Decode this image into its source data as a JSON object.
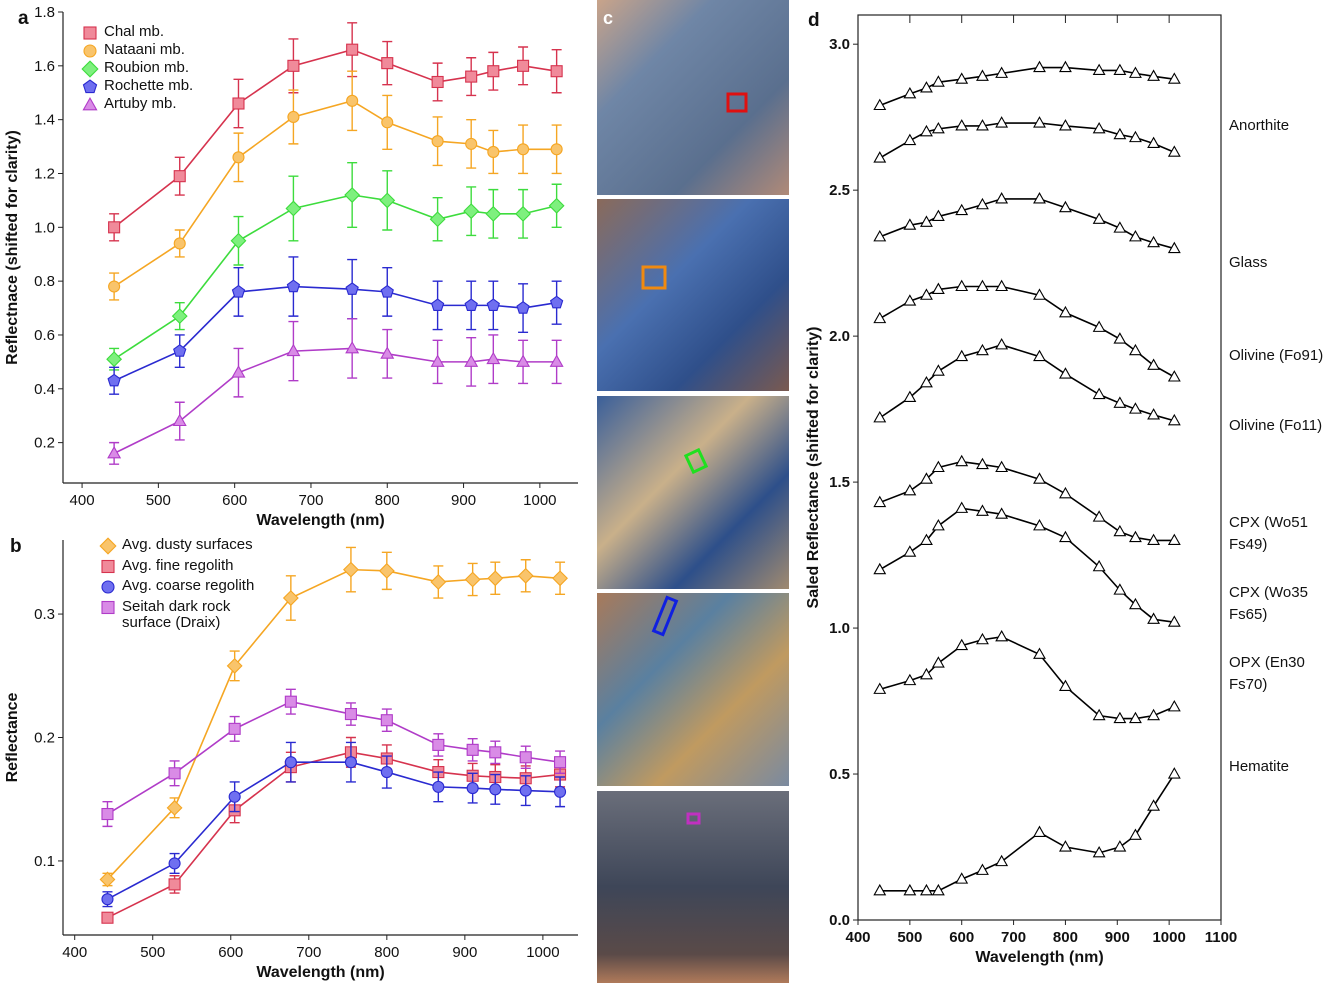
{
  "chart_data": [
    {
      "type": "line",
      "label": "a",
      "x_label": "Wavelength (nm)",
      "y_label": "Reflectnace (shifted for clarity)",
      "x": [
        442,
        528,
        605,
        677,
        754,
        800,
        866,
        910,
        939,
        978,
        1022
      ],
      "xlim": [
        375,
        1050
      ],
      "xticks": [
        400,
        500,
        600,
        700,
        800,
        900,
        1000
      ],
      "ylim": [
        0.05,
        1.8
      ],
      "yticks": [
        0.2,
        0.4,
        0.6,
        0.8,
        {
          "value": 1,
          "label": "1.0"
        },
        1.2,
        1.4,
        1.6,
        1.8
      ],
      "series": [
        {
          "name": "Chal mb.",
          "color": "#d6334e",
          "marker_fill": "#f08a9a",
          "marker": "square",
          "values": [
            1.0,
            1.19,
            1.46,
            1.6,
            1.66,
            1.61,
            1.54,
            1.56,
            1.58,
            1.6,
            1.58
          ],
          "errors": [
            0.05,
            0.07,
            0.09,
            0.1,
            0.1,
            0.08,
            0.07,
            0.07,
            0.07,
            0.07,
            0.08
          ]
        },
        {
          "name": "Nataani mb.",
          "color": "#f5a623",
          "marker_fill": "#f9c46b",
          "marker": "circle",
          "values": [
            0.78,
            0.94,
            1.26,
            1.41,
            1.47,
            1.39,
            1.32,
            1.31,
            1.28,
            1.29,
            1.29
          ],
          "errors": [
            0.05,
            0.05,
            0.09,
            0.1,
            0.11,
            0.1,
            0.09,
            0.09,
            0.08,
            0.09,
            0.09
          ]
        },
        {
          "name": "Roubion mb.",
          "color": "#3ddc3d",
          "marker_fill": "#7ef07e",
          "marker": "diamond",
          "values": [
            0.51,
            0.67,
            0.95,
            1.07,
            1.12,
            1.1,
            1.03,
            1.06,
            1.05,
            1.05,
            1.08
          ],
          "errors": [
            0.04,
            0.05,
            0.09,
            0.12,
            0.12,
            0.11,
            0.08,
            0.09,
            0.09,
            0.09,
            0.08
          ]
        },
        {
          "name": "Rochette mb.",
          "color": "#2a2ad0",
          "marker_fill": "#6f6ff0",
          "marker": "pentagon",
          "values": [
            0.43,
            0.54,
            0.76,
            0.78,
            0.77,
            0.76,
            0.71,
            0.71,
            0.71,
            0.7,
            0.72
          ],
          "errors": [
            0.05,
            0.06,
            0.09,
            0.11,
            0.11,
            0.09,
            0.09,
            0.09,
            0.09,
            0.09,
            0.08
          ]
        },
        {
          "name": "Artuby mb.",
          "color": "#b03cc8",
          "marker_fill": "#d98be6",
          "marker": "triangle",
          "values": [
            0.16,
            0.28,
            0.46,
            0.54,
            0.55,
            0.53,
            0.5,
            0.5,
            0.51,
            0.5,
            0.5
          ],
          "errors": [
            0.04,
            0.07,
            0.09,
            0.11,
            0.11,
            0.09,
            0.08,
            0.09,
            0.09,
            0.08,
            0.08
          ]
        }
      ]
    },
    {
      "type": "line",
      "label": "b",
      "x_label": "Wavelength (nm)",
      "y_label": "Reflectance",
      "x": [
        442,
        528,
        605,
        677,
        754,
        800,
        866,
        910,
        939,
        978,
        1022
      ],
      "xlim": [
        385,
        1045
      ],
      "xticks": [
        400,
        500,
        600,
        700,
        800,
        900,
        1000
      ],
      "ylim": [
        0.04,
        0.36
      ],
      "yticks": [
        0.1,
        0.2,
        0.3
      ],
      "series": [
        {
          "name": "Avg. dusty surfaces",
          "color": "#f5a623",
          "marker_fill": "#f9c46b",
          "marker": "diamond",
          "values": [
            0.085,
            0.143,
            0.258,
            0.313,
            0.336,
            0.335,
            0.326,
            0.328,
            0.329,
            0.331,
            0.329
          ],
          "errors": [
            0.005,
            0.008,
            0.012,
            0.018,
            0.018,
            0.015,
            0.013,
            0.013,
            0.013,
            0.013,
            0.013
          ]
        },
        {
          "name": "Avg. fine regolith",
          "color": "#d6334e",
          "marker_fill": "#f08a9a",
          "marker": "square",
          "values": [
            0.054,
            0.081,
            0.141,
            0.176,
            0.188,
            0.183,
            0.172,
            0.169,
            0.168,
            0.167,
            0.17
          ],
          "errors": [
            0.004,
            0.007,
            0.01,
            0.012,
            0.012,
            0.011,
            0.01,
            0.01,
            0.01,
            0.01,
            0.01
          ]
        },
        {
          "name": "Avg. coarse regolith",
          "color": "#2a2ad0",
          "marker_fill": "#6f6ff0",
          "marker": "circle",
          "values": [
            0.069,
            0.098,
            0.152,
            0.18,
            0.18,
            0.172,
            0.16,
            0.159,
            0.158,
            0.157,
            0.156
          ],
          "errors": [
            0.006,
            0.008,
            0.012,
            0.016,
            0.016,
            0.013,
            0.012,
            0.012,
            0.012,
            0.012,
            0.012
          ]
        },
        {
          "name": "Seitah dark rock surface (Draix)",
          "color": "#b03cc8",
          "marker_fill": "#d98be6",
          "marker": "square",
          "values": [
            0.138,
            0.171,
            0.207,
            0.229,
            0.219,
            0.214,
            0.194,
            0.19,
            0.188,
            0.184,
            0.18
          ],
          "errors": [
            0.01,
            0.01,
            0.01,
            0.01,
            0.009,
            0.009,
            0.009,
            0.009,
            0.009,
            0.009,
            0.009
          ]
        }
      ]
    },
    {
      "type": "line",
      "label": "d",
      "x_label": "Wavelength (nm)",
      "y_label": "Saled Reflectance (shifted for clarity)",
      "x": [
        442,
        500,
        532,
        555,
        600,
        640,
        677,
        750,
        800,
        865,
        905,
        935,
        970,
        1010
      ],
      "xlim": [
        400,
        1100
      ],
      "xticks": [
        400,
        500,
        600,
        700,
        800,
        900,
        1000,
        1100
      ],
      "ylim": [
        0,
        3.1
      ],
      "yticks": [
        {
          "value": 0,
          "label": "0.0"
        },
        0.5,
        {
          "value": 1,
          "label": "1.0"
        },
        1.5,
        {
          "value": 2,
          "label": "2.0"
        },
        2.5,
        {
          "value": 3,
          "label": "3.0"
        }
      ],
      "series": [
        {
          "color": "#000000",
          "marker_fill": "#ffffff",
          "marker": "triangle",
          "values": [
            2.79,
            2.83,
            2.85,
            2.87,
            2.88,
            2.89,
            2.9,
            2.92,
            2.92,
            2.91,
            2.91,
            2.9,
            2.89,
            2.88
          ]
        },
        {
          "name": "Anorthite",
          "color": "#000000",
          "marker_fill": "#ffffff",
          "marker": "triangle",
          "values": [
            2.61,
            2.67,
            2.7,
            2.71,
            2.72,
            2.72,
            2.73,
            2.73,
            2.72,
            2.71,
            2.69,
            2.68,
            2.66,
            2.63
          ]
        },
        {
          "name": "Glass",
          "color": "#000000",
          "marker_fill": "#ffffff",
          "marker": "triangle",
          "values": [
            2.34,
            2.38,
            2.39,
            2.41,
            2.43,
            2.45,
            2.47,
            2.47,
            2.44,
            2.4,
            2.37,
            2.34,
            2.32,
            2.3
          ]
        },
        {
          "name": "Olivine (Fo91)",
          "color": "#000000",
          "marker_fill": "#ffffff",
          "marker": "triangle",
          "values": [
            2.06,
            2.12,
            2.14,
            2.16,
            2.17,
            2.17,
            2.17,
            2.14,
            2.08,
            2.03,
            1.99,
            1.95,
            1.9,
            1.86
          ]
        },
        {
          "name": "Olivine (Fo11)",
          "color": "#000000",
          "marker_fill": "#ffffff",
          "marker": "triangle",
          "values": [
            1.72,
            1.79,
            1.84,
            1.88,
            1.93,
            1.95,
            1.97,
            1.93,
            1.87,
            1.8,
            1.77,
            1.75,
            1.73,
            1.71
          ]
        },
        {
          "name": "CPX (Wo51 Fs49)",
          "color": "#000000",
          "marker_fill": "#ffffff",
          "marker": "triangle",
          "values": [
            1.43,
            1.47,
            1.51,
            1.55,
            1.57,
            1.56,
            1.55,
            1.51,
            1.46,
            1.38,
            1.33,
            1.31,
            1.3,
            1.3
          ]
        },
        {
          "name": "CPX (Wo35 Fs65)",
          "color": "#000000",
          "marker_fill": "#ffffff",
          "marker": "triangle",
          "values": [
            1.2,
            1.26,
            1.3,
            1.35,
            1.41,
            1.4,
            1.39,
            1.35,
            1.31,
            1.21,
            1.13,
            1.08,
            1.03,
            1.02
          ]
        },
        {
          "name": "OPX (En30 Fs70)",
          "color": "#000000",
          "marker_fill": "#ffffff",
          "marker": "triangle",
          "values": [
            0.79,
            0.82,
            0.84,
            0.88,
            0.94,
            0.96,
            0.97,
            0.91,
            0.8,
            0.7,
            0.69,
            0.69,
            0.7,
            0.73
          ]
        },
        {
          "name": "Hematite",
          "color": "#000000",
          "marker_fill": "#ffffff",
          "marker": "triangle",
          "values": [
            0.1,
            0.1,
            0.1,
            0.1,
            0.14,
            0.17,
            0.2,
            0.3,
            0.25,
            0.23,
            0.25,
            0.29,
            0.39,
            0.5
          ]
        }
      ]
    }
  ],
  "images_panel": {
    "label": "c"
  }
}
